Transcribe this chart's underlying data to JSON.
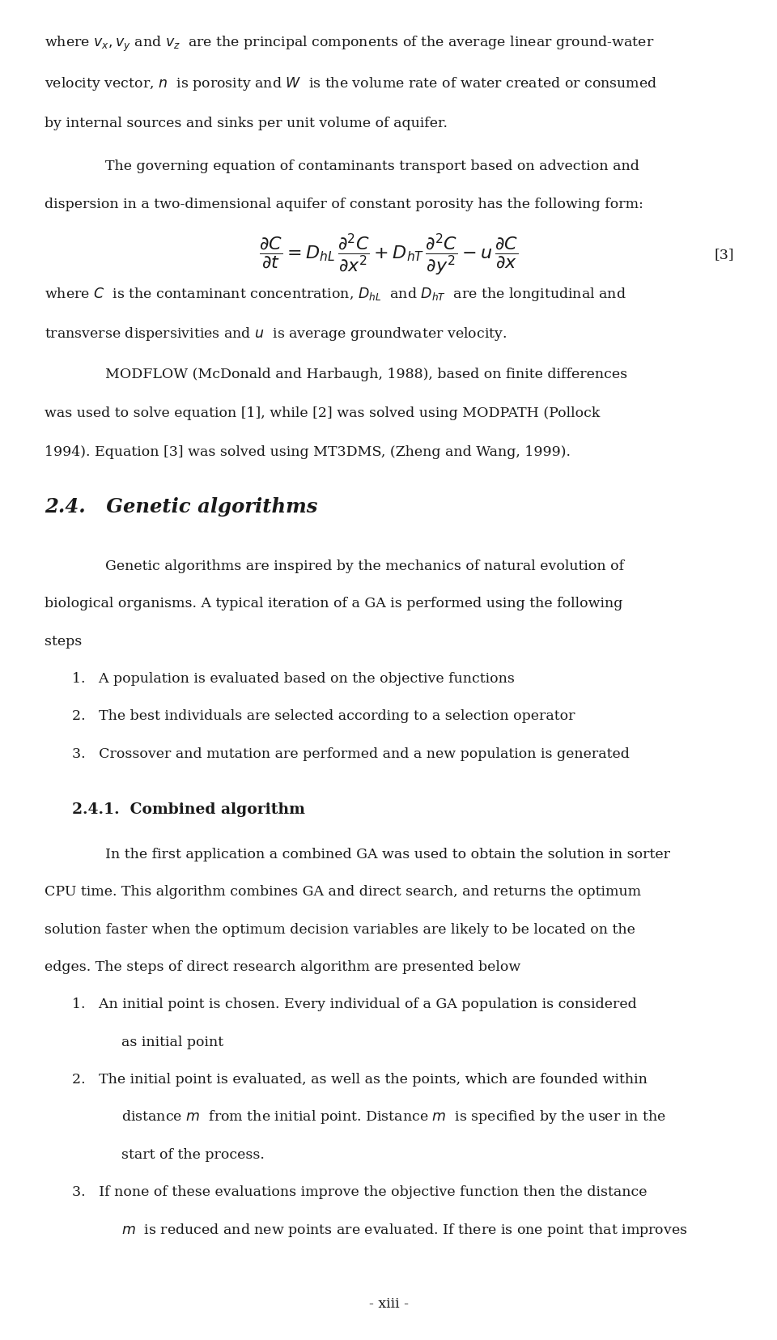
{
  "bg_color": "#ffffff",
  "text_color": "#1a1a1a",
  "font_family": "DejaVu Serif",
  "page_width": 9.6,
  "page_height": 16.56,
  "dpi": 100,
  "text_blocks": [
    {
      "xn": 0.057,
      "yn": 0.965,
      "text": "where $v_x, v_y$ and $v_z$  are the principal components of the average linear ground-water",
      "fontsize": 12.5,
      "ha": "left",
      "style": "normal"
    },
    {
      "xn": 0.057,
      "yn": 0.935,
      "text": "velocity vector, $n$  is porosity and $W$  is the volume rate of water created or consumed",
      "fontsize": 12.5,
      "ha": "left",
      "style": "normal"
    },
    {
      "xn": 0.057,
      "yn": 0.905,
      "text": "by internal sources and sinks per unit volume of aquifer.",
      "fontsize": 12.5,
      "ha": "left",
      "style": "normal"
    },
    {
      "xn": 0.135,
      "yn": 0.873,
      "text": "The governing equation of contaminants transport based on advection and",
      "fontsize": 12.5,
      "ha": "left",
      "style": "normal"
    },
    {
      "xn": 0.057,
      "yn": 0.845,
      "text": "dispersion in a two-dimensional aquifer of constant porosity has the following form:",
      "fontsize": 12.5,
      "ha": "left",
      "style": "normal"
    },
    {
      "xn": 0.057,
      "yn": 0.778,
      "text": "where $C$  is the contaminant concentration, $D_{hL}$  and $D_{hT}$  are the longitudinal and",
      "fontsize": 12.5,
      "ha": "left",
      "style": "normal"
    },
    {
      "xn": 0.057,
      "yn": 0.748,
      "text": "transverse dispersivities and $u$  is average groundwater velocity.",
      "fontsize": 12.5,
      "ha": "left",
      "style": "normal"
    },
    {
      "xn": 0.135,
      "yn": 0.718,
      "text": "MODFLOW (McDonald and Harbaugh, 1988), based on finite differences",
      "fontsize": 12.5,
      "ha": "left",
      "style": "normal"
    },
    {
      "xn": 0.057,
      "yn": 0.689,
      "text": "was used to solve equation [1], while [2] was solved using MODPATH (Pollock",
      "fontsize": 12.5,
      "ha": "left",
      "style": "normal"
    },
    {
      "xn": 0.057,
      "yn": 0.66,
      "text": "1994). Equation [3] was solved using MT3DMS, (Zheng and Wang, 1999).",
      "fontsize": 12.5,
      "ha": "left",
      "style": "normal"
    },
    {
      "xn": 0.057,
      "yn": 0.618,
      "text": "2.4.   Genetic algorithms",
      "fontsize": 17.5,
      "ha": "left",
      "style": "bold italic"
    },
    {
      "xn": 0.135,
      "yn": 0.575,
      "text": "Genetic algorithms are inspired by the mechanics of natural evolution of",
      "fontsize": 12.5,
      "ha": "left",
      "style": "normal"
    },
    {
      "xn": 0.057,
      "yn": 0.547,
      "text": "biological organisms. A typical iteration of a GA is performed using the following",
      "fontsize": 12.5,
      "ha": "left",
      "style": "normal"
    },
    {
      "xn": 0.057,
      "yn": 0.519,
      "text": "steps",
      "fontsize": 12.5,
      "ha": "left",
      "style": "normal"
    },
    {
      "xn": 0.093,
      "yn": 0.491,
      "text": "1.   A population is evaluated based on the objective functions",
      "fontsize": 12.5,
      "ha": "left",
      "style": "normal"
    },
    {
      "xn": 0.093,
      "yn": 0.463,
      "text": "2.   The best individuals are selected according to a selection operator",
      "fontsize": 12.5,
      "ha": "left",
      "style": "normal"
    },
    {
      "xn": 0.093,
      "yn": 0.435,
      "text": "3.   Crossover and mutation are performed and a new population is generated",
      "fontsize": 12.5,
      "ha": "left",
      "style": "normal"
    },
    {
      "xn": 0.093,
      "yn": 0.393,
      "text": "2.4.1.  Combined algorithm",
      "fontsize": 13.5,
      "ha": "left",
      "style": "bold"
    },
    {
      "xn": 0.135,
      "yn": 0.36,
      "text": "In the first application a combined GA was used to obtain the solution in sorter",
      "fontsize": 12.5,
      "ha": "left",
      "style": "normal"
    },
    {
      "xn": 0.057,
      "yn": 0.332,
      "text": "CPU time. This algorithm combines GA and direct search, and returns the optimum",
      "fontsize": 12.5,
      "ha": "left",
      "style": "normal"
    },
    {
      "xn": 0.057,
      "yn": 0.304,
      "text": "solution faster when the optimum decision variables are likely to be located on the",
      "fontsize": 12.5,
      "ha": "left",
      "style": "normal"
    },
    {
      "xn": 0.057,
      "yn": 0.276,
      "text": "edges. The steps of direct research algorithm are presented below",
      "fontsize": 12.5,
      "ha": "left",
      "style": "normal"
    },
    {
      "xn": 0.093,
      "yn": 0.248,
      "text": "1.   An initial point is chosen. Every individual of a GA population is considered",
      "fontsize": 12.5,
      "ha": "left",
      "style": "normal"
    },
    {
      "xn": 0.156,
      "yn": 0.22,
      "text": "as initial point",
      "fontsize": 12.5,
      "ha": "left",
      "style": "normal"
    },
    {
      "xn": 0.093,
      "yn": 0.192,
      "text": "2.   The initial point is evaluated, as well as the points, which are founded within",
      "fontsize": 12.5,
      "ha": "left",
      "style": "normal"
    },
    {
      "xn": 0.156,
      "yn": 0.164,
      "text": "distance $m$  from the initial point. Distance $m$  is specified by the user in the",
      "fontsize": 12.5,
      "ha": "left",
      "style": "normal"
    },
    {
      "xn": 0.156,
      "yn": 0.136,
      "text": "start of the process.",
      "fontsize": 12.5,
      "ha": "left",
      "style": "normal"
    },
    {
      "xn": 0.093,
      "yn": 0.108,
      "text": "3.   If none of these evaluations improve the objective function then the distance",
      "fontsize": 12.5,
      "ha": "left",
      "style": "normal"
    },
    {
      "xn": 0.156,
      "yn": 0.08,
      "text": "$m$  is reduced and new points are evaluated. If there is one point that improves",
      "fontsize": 12.5,
      "ha": "left",
      "style": "normal"
    }
  ],
  "equation_xn": 0.5,
  "equation_yn": 0.81,
  "equation_fontsize": 16,
  "equation_label_xn": 0.945,
  "equation_label": "[3]",
  "footer_xn": 0.5,
  "footer_yn": 0.025,
  "footer_text": "- xiii -",
  "footer_fontsize": 12.5
}
